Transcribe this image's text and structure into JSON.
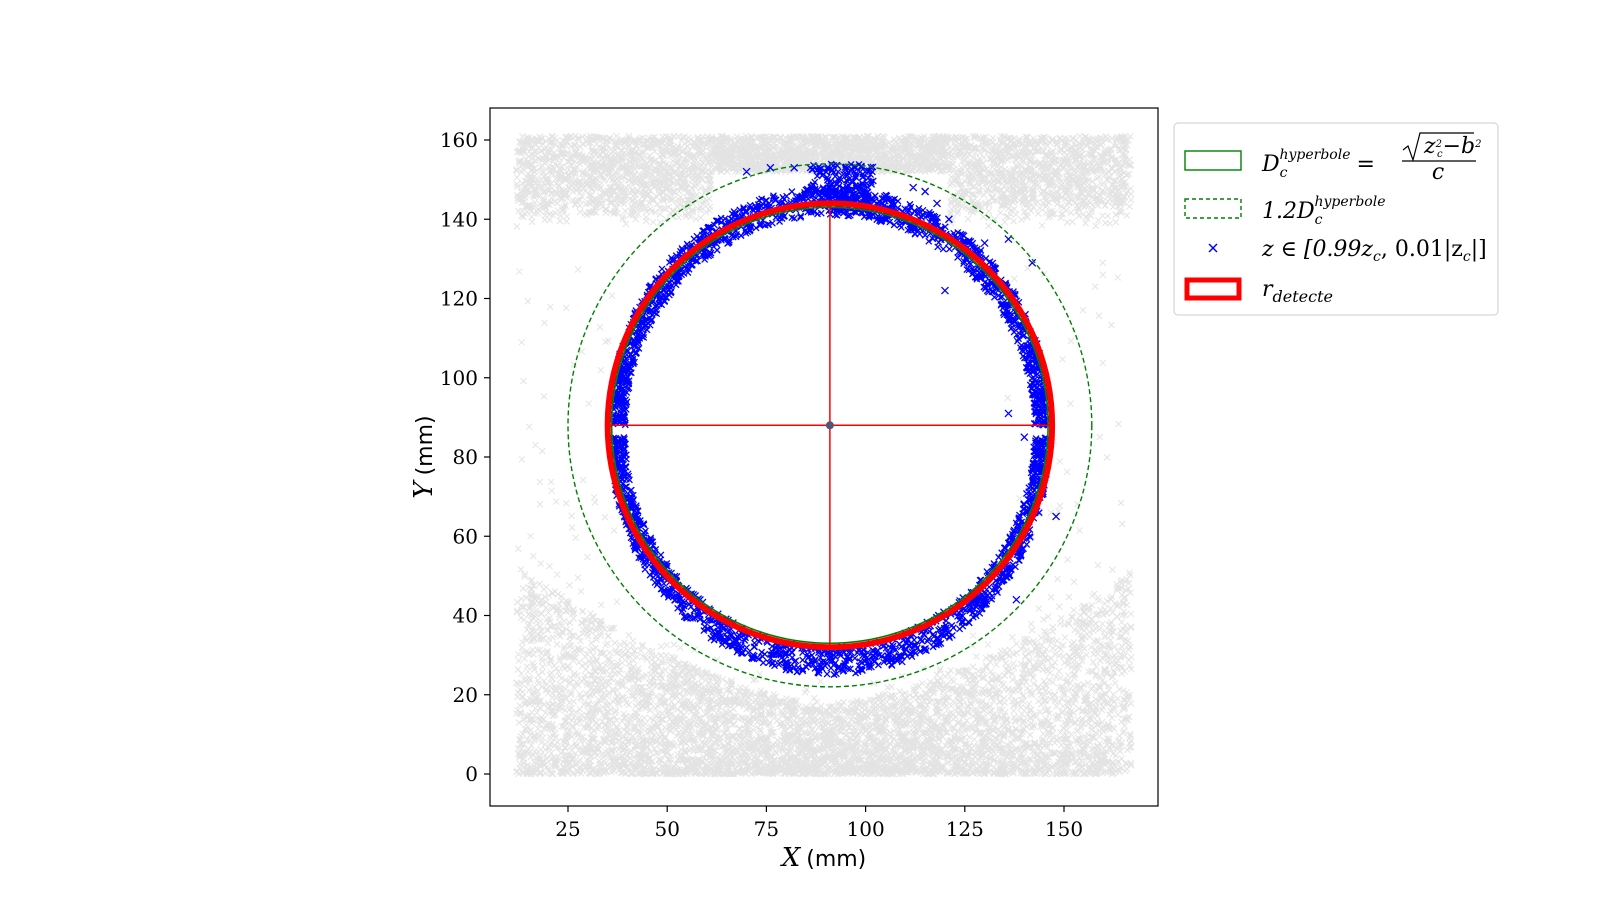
{
  "chart_data": {
    "type": "scatter",
    "xlabel_var": "X",
    "xlabel_unit": "(mm)",
    "ylabel_var": "Y",
    "ylabel_unit": "(mm)",
    "xlim": [
      4,
      173
    ],
    "ylim": [
      -8,
      168
    ],
    "xticks": [
      25,
      50,
      75,
      100,
      125,
      150
    ],
    "yticks": [
      0,
      20,
      40,
      60,
      80,
      100,
      120,
      140,
      160
    ],
    "grid": false,
    "legend_placement": "outside-top-right",
    "background_points": {
      "color": "#808080",
      "marker": "x",
      "x_range": [
        12,
        167
      ],
      "regions": [
        {
          "y_range": [
            0,
            55
          ],
          "description": "dense lower band"
        },
        {
          "y_range": [
            145,
            161
          ],
          "description": "dense upper band"
        }
      ]
    },
    "circle_detected": {
      "cx": 91,
      "cy": 88,
      "r": 56,
      "color": "#ff0000"
    },
    "series": [
      {
        "name": "D_c^hyperbole = sqrt(z_c^2 - b^2)/c",
        "kind": "circle",
        "cx": 91,
        "cy": 88,
        "r": 55,
        "color": "#008000",
        "style": "solid"
      },
      {
        "name": "1.2 D_c^hyperbole",
        "kind": "circle",
        "cx": 91,
        "cy": 88,
        "r": 66,
        "color": "#008000",
        "style": "dashed"
      },
      {
        "name": "z ∈ [0.99z_c, 0.01|z_c|]",
        "kind": "scatter",
        "color": "#0000ff",
        "marker": "x",
        "ring": {
          "cx": 91,
          "cy": 85,
          "r_inner": 53,
          "r_outer": 60
        }
      },
      {
        "name": "r_detecte",
        "kind": "circle",
        "cx": 91,
        "cy": 88,
        "r": 56,
        "color": "#ff0000",
        "style": "thick"
      }
    ],
    "center_point": {
      "x": 91,
      "y": 88,
      "color": "#555577"
    }
  },
  "legend": {
    "entry1_prefix": "D",
    "entry1_sub": "c",
    "entry1_sup": "hyperbole",
    "entry1_eq": "=",
    "entry1_num": "z",
    "entry1_num_rest": "−b",
    "entry1_den": "c",
    "entry2_prefix": "1.2D",
    "entry2_sub": "c",
    "entry2_sup": "hyperbole",
    "entry3_text": "z ∈ [0.99z",
    "entry3_sub": "c",
    "entry3_mid": ", 0.01|z",
    "entry3_sub2": "c",
    "entry3_end": "|]",
    "entry4_text": "r",
    "entry4_sub": "detecte"
  },
  "colors": {
    "background_points": "#808080",
    "blue_points": "#0000ff",
    "green": "#008000",
    "red": "#ff0000"
  }
}
